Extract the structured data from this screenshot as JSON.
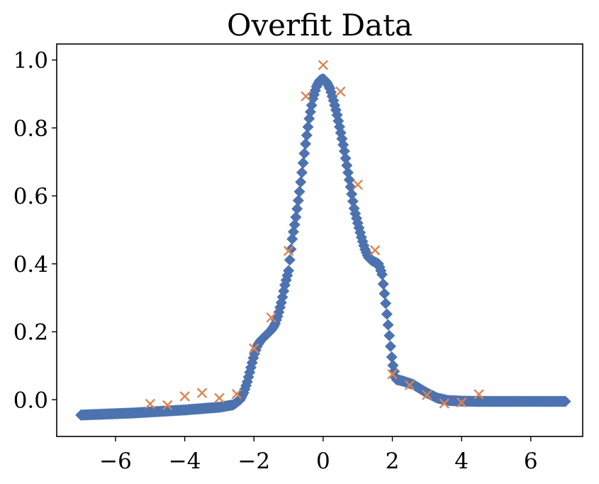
{
  "chart_data": {
    "type": "scatter",
    "title": "Overfit Data",
    "xlabel": "",
    "ylabel": "",
    "xlim": [
      -7.7,
      7.5
    ],
    "ylim": [
      -0.108,
      1.047
    ],
    "xticks": [
      -6,
      -4,
      -2,
      0,
      2,
      4,
      6
    ],
    "xtick_labels": [
      "−6",
      "−4",
      "−2",
      "0",
      "2",
      "4",
      "6"
    ],
    "yticks": [
      0.0,
      0.2,
      0.4,
      0.6,
      0.8,
      1.0
    ],
    "ytick_labels": [
      "0.0",
      "0.2",
      "0.4",
      "0.6",
      "0.8",
      "1.0"
    ],
    "grid": false,
    "legend": "none",
    "series": [
      {
        "marker": "diamond",
        "color": "#4c72b0",
        "x": [
          -7.0,
          -6.5,
          -6.0,
          -5.5,
          -5.0,
          -4.5,
          -4.0,
          -3.5,
          -3.0,
          -2.6,
          -2.4,
          -2.3,
          -2.2,
          -2.1,
          -2.0,
          -1.9,
          -1.8,
          -1.7,
          -1.6,
          -1.5,
          -1.4,
          -1.3,
          -1.2,
          -1.1,
          -1.0,
          -0.9,
          -0.8,
          -0.7,
          -0.6,
          -0.5,
          -0.4,
          -0.3,
          -0.2,
          -0.1,
          0.0,
          0.1,
          0.2,
          0.3,
          0.4,
          0.5,
          0.6,
          0.7,
          0.8,
          0.9,
          1.0,
          1.1,
          1.2,
          1.3,
          1.4,
          1.5,
          1.6,
          1.7,
          1.8,
          1.9,
          2.0,
          2.1,
          2.3,
          2.6,
          3.0,
          3.3,
          3.6,
          4.0,
          4.5,
          5.0,
          5.5,
          6.0,
          6.5,
          7.0
        ],
        "y": [
          -0.045,
          -0.043,
          -0.041,
          -0.039,
          -0.036,
          -0.033,
          -0.03,
          -0.026,
          -0.022,
          -0.015,
          0.0,
          0.02,
          0.05,
          0.09,
          0.13,
          0.16,
          0.175,
          0.185,
          0.195,
          0.205,
          0.22,
          0.25,
          0.29,
          0.34,
          0.38,
          0.47,
          0.53,
          0.6,
          0.68,
          0.76,
          0.83,
          0.885,
          0.92,
          0.94,
          0.945,
          0.935,
          0.915,
          0.88,
          0.84,
          0.79,
          0.74,
          0.68,
          0.62,
          0.56,
          0.52,
          0.48,
          0.445,
          0.42,
          0.41,
          0.405,
          0.4,
          0.37,
          0.29,
          0.2,
          0.11,
          0.06,
          0.055,
          0.045,
          0.02,
          0.005,
          -0.002,
          -0.004,
          -0.005,
          -0.005,
          -0.005,
          -0.005,
          -0.005,
          -0.005
        ]
      },
      {
        "marker": "x",
        "color": "#dd8452",
        "x": [
          -5.0,
          -4.5,
          -4.0,
          -3.5,
          -3.0,
          -2.5,
          -2.0,
          -1.5,
          -1.0,
          -0.5,
          0.0,
          0.5,
          1.0,
          1.5,
          2.0,
          2.5,
          3.0,
          3.5,
          4.0,
          4.5
        ],
        "y": [
          -0.012,
          -0.016,
          0.01,
          0.02,
          0.005,
          0.017,
          0.151,
          0.242,
          0.438,
          0.893,
          0.985,
          0.907,
          0.633,
          0.44,
          0.075,
          0.043,
          0.014,
          -0.011,
          -0.008,
          0.016
        ]
      }
    ]
  }
}
